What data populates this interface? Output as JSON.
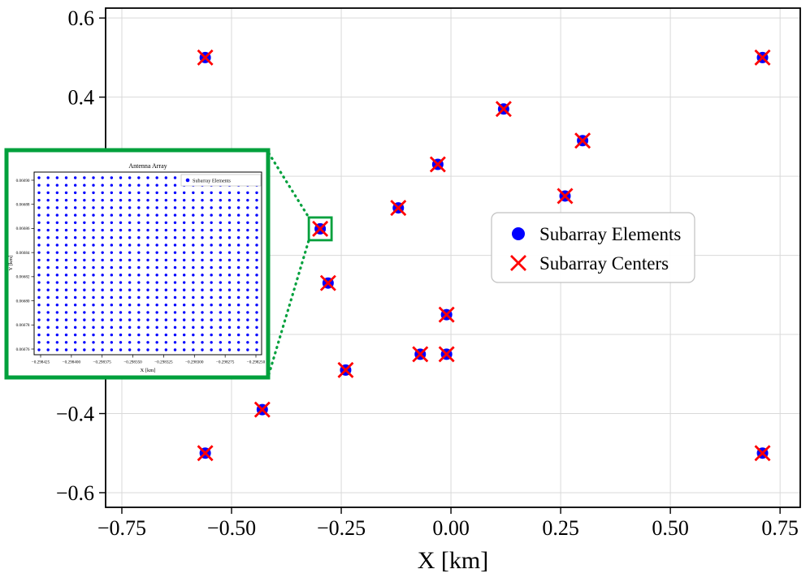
{
  "style": {
    "accent_green": "#00A03C",
    "grid_color": "#d9d9d9",
    "spine_color": "#000000",
    "legend_border": "#c0c0c0",
    "background": "#ffffff"
  },
  "chart_data": {
    "type": "scatter",
    "title": "",
    "xlabel": "X [km]",
    "ylabel": "",
    "xlim": [
      -0.787,
      0.796
    ],
    "ylim": [
      -0.637,
      0.625
    ],
    "grid": true,
    "x_ticks": {
      "values": [
        -0.75,
        -0.5,
        -0.25,
        0,
        0.25,
        0.5,
        0.75
      ],
      "labels": [
        "−0.75",
        "−0.50",
        "−0.25",
        "0.00",
        "0.25",
        "0.50",
        "0.75"
      ]
    },
    "y_ticks": {
      "values": [
        0.6,
        0.4,
        0.2,
        0,
        -0.2,
        -0.4,
        -0.6
      ],
      "labels": [
        "0.6",
        "0.4",
        "0.2",
        "0.0",
        "−0.2",
        "−0.4",
        "−0.6"
      ]
    },
    "legend_position": "center right",
    "series": [
      {
        "name": "Subarray Elements",
        "marker": "circle",
        "color": "#0000FF"
      },
      {
        "name": "Subarray Centers",
        "marker": "x",
        "color": "#FF0000"
      }
    ],
    "centers": [
      [
        -0.56,
        0.5
      ],
      [
        0.71,
        0.5
      ],
      [
        0.12,
        0.37
      ],
      [
        0.3,
        0.29
      ],
      [
        -0.03,
        0.23
      ],
      [
        0.26,
        0.15
      ],
      [
        -0.12,
        0.12
      ],
      [
        -0.298,
        0.067
      ],
      [
        -0.28,
        -0.07
      ],
      [
        -0.01,
        -0.15
      ],
      [
        -0.07,
        -0.25
      ],
      [
        -0.01,
        -0.25
      ],
      [
        -0.24,
        -0.29
      ],
      [
        -0.43,
        -0.39
      ],
      [
        -0.56,
        -0.5
      ],
      [
        0.71,
        -0.5
      ]
    ]
  },
  "inset": {
    "title": "Antenna Array",
    "xlabel": "X [km]",
    "ylabel": "Y [km]",
    "x_tick_labels": [
      "−0.298425",
      "−0.298400",
      "−0.298375",
      "−0.298350",
      "−0.298325",
      "−0.298300",
      "−0.298275",
      "−0.298250"
    ],
    "y_tick_labels": [
      "0.06676",
      "0.06678",
      "0.06680",
      "0.06682",
      "0.06684",
      "0.06686",
      "0.06688",
      "0.06690"
    ],
    "legend_label": "Subarray Elements",
    "element_grid": {
      "cols": 25,
      "rows": 24
    },
    "highlighted_center": [
      -0.298,
      0.067
    ]
  }
}
